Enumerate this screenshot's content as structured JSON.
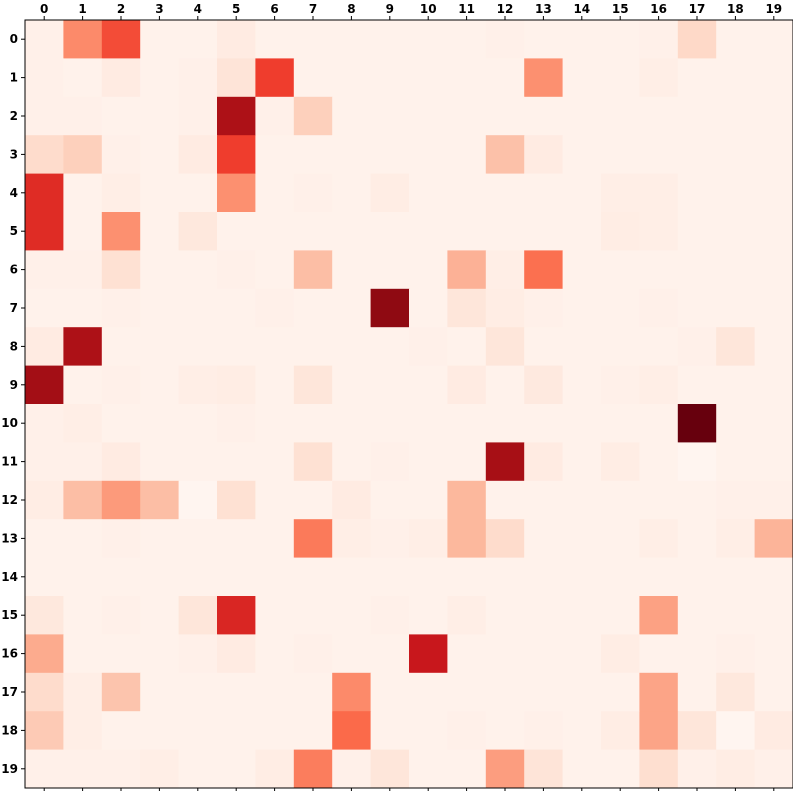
{
  "chart_data": {
    "type": "heatmap",
    "title": "",
    "xlabel": "",
    "ylabel": "",
    "x_ticks": [
      "0",
      "1",
      "2",
      "3",
      "4",
      "5",
      "6",
      "7",
      "8",
      "9",
      "10",
      "11",
      "12",
      "13",
      "14",
      "15",
      "16",
      "17",
      "18",
      "19"
    ],
    "y_ticks": [
      "0",
      "1",
      "2",
      "3",
      "4",
      "5",
      "6",
      "7",
      "8",
      "9",
      "10",
      "11",
      "12",
      "13",
      "14",
      "15",
      "16",
      "17",
      "18",
      "19"
    ],
    "x_axis_position": "top",
    "colormap": "Reds",
    "value_range": [
      0,
      1
    ],
    "grid": false,
    "values": [
      [
        0.03,
        0.4,
        0.58,
        0.02,
        0.02,
        0.06,
        0.02,
        0.02,
        0.02,
        0.02,
        0.02,
        0.02,
        0.03,
        0.02,
        0.02,
        0.02,
        0.03,
        0.15,
        0.02,
        0.02
      ],
      [
        0.03,
        0.02,
        0.06,
        0.02,
        0.03,
        0.1,
        0.62,
        0.02,
        0.02,
        0.02,
        0.02,
        0.02,
        0.02,
        0.38,
        0.02,
        0.02,
        0.04,
        0.02,
        0.02,
        0.02
      ],
      [
        0.03,
        0.03,
        0.02,
        0.02,
        0.03,
        0.85,
        0.03,
        0.18,
        0.02,
        0.02,
        0.02,
        0.02,
        0.02,
        0.02,
        0.02,
        0.02,
        0.02,
        0.02,
        0.02,
        0.02
      ],
      [
        0.14,
        0.18,
        0.03,
        0.02,
        0.06,
        0.62,
        0.02,
        0.02,
        0.02,
        0.02,
        0.02,
        0.02,
        0.23,
        0.06,
        0.02,
        0.02,
        0.02,
        0.02,
        0.02,
        0.02
      ],
      [
        0.68,
        0.02,
        0.04,
        0.02,
        0.02,
        0.38,
        0.02,
        0.03,
        0.02,
        0.05,
        0.02,
        0.02,
        0.02,
        0.02,
        0.02,
        0.04,
        0.04,
        0.02,
        0.02,
        0.02
      ],
      [
        0.68,
        0.02,
        0.38,
        0.02,
        0.08,
        0.02,
        0.02,
        0.02,
        0.02,
        0.02,
        0.02,
        0.02,
        0.02,
        0.02,
        0.02,
        0.05,
        0.04,
        0.02,
        0.02,
        0.02
      ],
      [
        0.03,
        0.03,
        0.12,
        0.02,
        0.02,
        0.03,
        0.02,
        0.24,
        0.02,
        0.02,
        0.02,
        0.28,
        0.04,
        0.48,
        0.02,
        0.02,
        0.02,
        0.02,
        0.02,
        0.02
      ],
      [
        0.02,
        0.02,
        0.03,
        0.02,
        0.02,
        0.02,
        0.03,
        0.02,
        0.02,
        0.92,
        0.02,
        0.09,
        0.05,
        0.03,
        0.02,
        0.02,
        0.03,
        0.02,
        0.02,
        0.02
      ],
      [
        0.06,
        0.85,
        0.02,
        0.02,
        0.02,
        0.02,
        0.02,
        0.02,
        0.02,
        0.02,
        0.03,
        0.02,
        0.09,
        0.02,
        0.02,
        0.02,
        0.02,
        0.03,
        0.09,
        0.02
      ],
      [
        0.88,
        0.02,
        0.03,
        0.02,
        0.04,
        0.05,
        0.02,
        0.09,
        0.02,
        0.02,
        0.02,
        0.06,
        0.02,
        0.07,
        0.02,
        0.03,
        0.04,
        0.02,
        0.02,
        0.02
      ],
      [
        0.03,
        0.04,
        0.02,
        0.02,
        0.02,
        0.03,
        0.02,
        0.02,
        0.02,
        0.02,
        0.02,
        0.02,
        0.02,
        0.02,
        0.02,
        0.02,
        0.02,
        1.0,
        0.02,
        0.02
      ],
      [
        0.03,
        0.03,
        0.06,
        0.02,
        0.02,
        0.02,
        0.02,
        0.12,
        0.02,
        0.03,
        0.02,
        0.02,
        0.87,
        0.06,
        0.02,
        0.05,
        0.02,
        0.0,
        0.02,
        0.02
      ],
      [
        0.05,
        0.24,
        0.35,
        0.24,
        0.0,
        0.12,
        0.02,
        0.02,
        0.06,
        0.02,
        0.02,
        0.26,
        0.02,
        0.02,
        0.02,
        0.02,
        0.02,
        0.02,
        0.03,
        0.03
      ],
      [
        0.02,
        0.02,
        0.03,
        0.02,
        0.02,
        0.02,
        0.02,
        0.45,
        0.04,
        0.03,
        0.04,
        0.26,
        0.14,
        0.02,
        0.02,
        0.02,
        0.04,
        0.02,
        0.04,
        0.27
      ],
      [
        0.02,
        0.02,
        0.02,
        0.02,
        0.02,
        0.02,
        0.02,
        0.02,
        0.02,
        0.02,
        0.02,
        0.02,
        0.02,
        0.02,
        0.02,
        0.02,
        0.02,
        0.02,
        0.02,
        0.02
      ],
      [
        0.08,
        0.02,
        0.03,
        0.02,
        0.09,
        0.7,
        0.02,
        0.02,
        0.02,
        0.03,
        0.02,
        0.04,
        0.02,
        0.02,
        0.02,
        0.02,
        0.33,
        0.02,
        0.02,
        0.02
      ],
      [
        0.3,
        0.02,
        0.02,
        0.02,
        0.03,
        0.06,
        0.02,
        0.03,
        0.02,
        0.02,
        0.76,
        0.02,
        0.02,
        0.02,
        0.02,
        0.05,
        0.02,
        0.02,
        0.03,
        0.02
      ],
      [
        0.14,
        0.04,
        0.22,
        0.02,
        0.02,
        0.02,
        0.02,
        0.02,
        0.4,
        0.02,
        0.02,
        0.02,
        0.02,
        0.02,
        0.02,
        0.02,
        0.32,
        0.02,
        0.08,
        0.02
      ],
      [
        0.2,
        0.04,
        0.02,
        0.02,
        0.02,
        0.02,
        0.02,
        0.02,
        0.5,
        0.02,
        0.02,
        0.03,
        0.02,
        0.03,
        0.02,
        0.05,
        0.32,
        0.09,
        0.0,
        0.06
      ],
      [
        0.03,
        0.03,
        0.03,
        0.04,
        0.02,
        0.02,
        0.05,
        0.44,
        0.03,
        0.09,
        0.02,
        0.02,
        0.34,
        0.1,
        0.02,
        0.02,
        0.13,
        0.03,
        0.05,
        0.03
      ]
    ]
  }
}
